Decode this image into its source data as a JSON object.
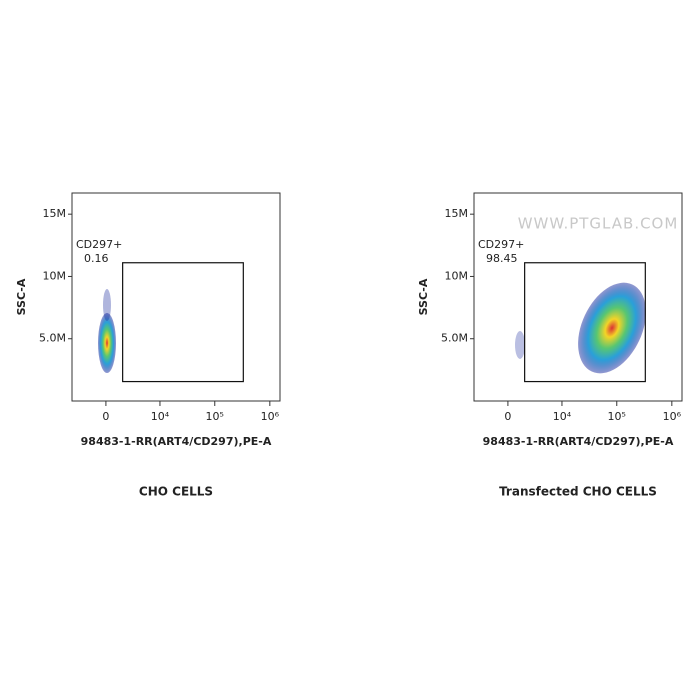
{
  "chart_data": [
    {
      "type": "flow-density",
      "caption": "CHO CELLS",
      "x_label": "98483-1-RR(ART4/CD297),PE-A",
      "y_label": "SSC-A",
      "xscale": "biexponential",
      "xlim": [
        -4100,
        1530000
      ],
      "xticks": [
        0,
        {
          "value": 10000,
          "label": "10⁴"
        },
        {
          "value": 100000,
          "label": "10⁵"
        },
        {
          "value": 1000000,
          "label": "10⁶"
        }
      ],
      "ylim": [
        0,
        16700000
      ],
      "yticks": [
        {
          "value": 5000000,
          "label": "5.0M"
        },
        {
          "value": 10000000,
          "label": "10M"
        },
        {
          "value": 15000000,
          "label": "15M"
        }
      ],
      "gate": {
        "name": "CD297+",
        "percent": 0.16,
        "xrange": [
          1600,
          330000
        ],
        "yrange": [
          1560000,
          11100000
        ]
      }
    },
    {
      "type": "flow-density",
      "caption": "Transfected CHO CELLS",
      "x_label": "98483-1-RR(ART4/CD297),PE-A",
      "y_label": "SSC-A",
      "watermark": "WWW.PTGLAB.COM",
      "xscale": "biexponential",
      "xlim": [
        -4100,
        1530000
      ],
      "xticks": [
        0,
        {
          "value": 10000,
          "label": "10⁴"
        },
        {
          "value": 100000,
          "label": "10⁵"
        },
        {
          "value": 1000000,
          "label": "10⁶"
        }
      ],
      "ylim": [
        0,
        16700000
      ],
      "yticks": [
        {
          "value": 5000000,
          "label": "5.0M"
        },
        {
          "value": 10000000,
          "label": "10M"
        },
        {
          "value": 15000000,
          "label": "15M"
        }
      ],
      "gate": {
        "name": "CD297+",
        "percent": 98.45,
        "xrange": [
          1600,
          330000
        ],
        "yrange": [
          1560000,
          11100000
        ]
      }
    }
  ]
}
